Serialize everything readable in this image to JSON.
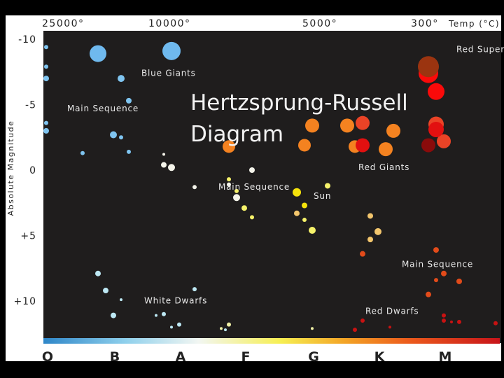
{
  "chart_data": {
    "type": "scatter",
    "title": "Hertzsprung-Russell Diagram",
    "xlabel": "Temp (°C)",
    "ylabel": "Absolute Magnitude",
    "x_ticks": [
      "25000°",
      "10000°",
      "5000°",
      "300°"
    ],
    "y_ticks": [
      "-10",
      "-5",
      "0",
      "+5",
      "+10"
    ],
    "spectral_classes": [
      "O",
      "B",
      "A",
      "F",
      "G",
      "K",
      "M"
    ],
    "region_labels": [
      {
        "text": "Red Supergiants",
        "class": "M",
        "magnitude": -9
      },
      {
        "text": "Blue Giants",
        "class": "B",
        "magnitude": -7.2
      },
      {
        "text": "Main Sequence",
        "class": "O",
        "magnitude": -4.5
      },
      {
        "text": "Red Giants",
        "class": "K",
        "magnitude": 0
      },
      {
        "text": "Main Sequence",
        "class": "A",
        "magnitude": 1.5
      },
      {
        "text": "Sun",
        "class": "G",
        "magnitude": 2.2
      },
      {
        "text": "Main Sequence",
        "class": "M",
        "magnitude": 7.4
      },
      {
        "text": "White Dwarfs",
        "class": "A",
        "magnitude": 10.2
      },
      {
        "text": "Red Dwarfs",
        "class": "K",
        "magnitude": 11
      }
    ],
    "groups": [
      {
        "name": "Blue Giants",
        "color": "#6fb9ee",
        "points": [
          {
            "class": "B",
            "magnitude": -8.9,
            "size": 12
          },
          {
            "class": "A",
            "magnitude": -9.1,
            "size": 13
          }
        ]
      },
      {
        "name": "Main Sequence",
        "color": "#7fc4f0",
        "points": [
          {
            "class": "O",
            "magnitude": -9.4,
            "size": 3
          },
          {
            "class": "O",
            "magnitude": -7.9,
            "size": 3
          },
          {
            "class": "O",
            "magnitude": -7.0,
            "size": 4
          },
          {
            "class": "B",
            "magnitude": -7.0,
            "size": 5
          },
          {
            "class": "B",
            "magnitude": -5.3,
            "size": 4
          },
          {
            "class": "O",
            "magnitude": -3.6,
            "size": 3
          },
          {
            "class": "O",
            "magnitude": -3.0,
            "size": 4
          },
          {
            "class": "B",
            "magnitude": -2.7,
            "size": 5
          },
          {
            "class": "B",
            "magnitude": -2.5,
            "size": 3
          },
          {
            "class": "B",
            "magnitude": -1.4,
            "size": 3
          },
          {
            "class": "B",
            "magnitude": -1.3,
            "size": 3
          }
        ]
      },
      {
        "name": "Main Sequence",
        "color": "#f4f4ea",
        "points": [
          {
            "class": "A",
            "magnitude": -1.2,
            "size": 2
          },
          {
            "class": "A",
            "magnitude": -0.2,
            "size": 5
          },
          {
            "class": "A",
            "magnitude": -0.4,
            "size": 4
          },
          {
            "class": "F",
            "magnitude": 0.0,
            "size": 4
          },
          {
            "class": "A",
            "magnitude": 1.3,
            "size": 3
          },
          {
            "class": "F",
            "magnitude": 1.1,
            "size": 3
          },
          {
            "class": "F",
            "magnitude": 2.1,
            "size": 5
          }
        ]
      },
      {
        "name": "Main Sequence",
        "color": "#f6f26a",
        "points": [
          {
            "class": "F",
            "magnitude": 0.7,
            "size": 3
          },
          {
            "class": "F",
            "magnitude": 1.6,
            "size": 3
          },
          {
            "class": "F",
            "magnitude": 2.9,
            "size": 4
          },
          {
            "class": "F",
            "magnitude": 3.6,
            "size": 3
          },
          {
            "class": "G",
            "magnitude": 1.2,
            "size": 4
          },
          {
            "class": "G",
            "magnitude": 1.8,
            "size": 4
          },
          {
            "class": "G",
            "magnitude": 3.8,
            "size": 3
          },
          {
            "class": "G",
            "magnitude": 4.6,
            "size": 5
          }
        ]
      },
      {
        "name": "Sun",
        "color": "#f5e20b",
        "points": [
          {
            "class": "G",
            "magnitude": 1.7,
            "size": 6
          },
          {
            "class": "G",
            "magnitude": 2.7,
            "size": 4
          }
        ]
      },
      {
        "name": "Main Sequence",
        "color": "#f3c66d",
        "points": [
          {
            "class": "G",
            "magnitude": 3.3,
            "size": 4
          },
          {
            "class": "K",
            "magnitude": 3.5,
            "size": 4
          },
          {
            "class": "K",
            "magnitude": 4.7,
            "size": 5
          },
          {
            "class": "K",
            "magnitude": 5.3,
            "size": 4
          }
        ]
      },
      {
        "name": "Red Giants",
        "color": "#f48220",
        "points": [
          {
            "class": "F",
            "magnitude": -1.8,
            "size": 9
          },
          {
            "class": "G",
            "magnitude": -1.9,
            "size": 9
          },
          {
            "class": "G",
            "magnitude": -3.4,
            "size": 10
          },
          {
            "class": "K",
            "magnitude": -1.6,
            "size": 10
          },
          {
            "class": "K",
            "magnitude": -3.0,
            "size": 10
          },
          {
            "class": "K",
            "magnitude": -3.4,
            "size": 10
          },
          {
            "class": "K",
            "magnitude": -1.8,
            "size": 9
          }
        ]
      },
      {
        "name": "Red Giants",
        "color": "#ea4326",
        "points": [
          {
            "class": "K",
            "magnitude": -3.6,
            "size": 10
          },
          {
            "class": "M",
            "magnitude": -3.5,
            "size": 11
          },
          {
            "class": "M",
            "magnitude": -2.2,
            "size": 10
          }
        ]
      },
      {
        "name": "Red Giants",
        "color": "#e21010",
        "points": [
          {
            "class": "K",
            "magnitude": -1.9,
            "size": 10
          },
          {
            "class": "M",
            "magnitude": -3.1,
            "size": 11
          }
        ]
      },
      {
        "name": "Red Giants",
        "color": "#8a0b0b",
        "points": [
          {
            "class": "M",
            "magnitude": -1.9,
            "size": 10
          }
        ]
      },
      {
        "name": "Red Supergiants",
        "color": "#fa0a0a",
        "points": [
          {
            "class": "M",
            "magnitude": -7.4,
            "size": 14
          },
          {
            "class": "M",
            "magnitude": -6.0,
            "size": 12
          }
        ]
      },
      {
        "name": "Red Supergiants",
        "color": "#9b3410",
        "points": [
          {
            "class": "M",
            "magnitude": -7.9,
            "size": 15
          }
        ]
      },
      {
        "name": "Main Sequence",
        "color": "#e24b1a",
        "points": [
          {
            "class": "K",
            "magnitude": 6.4,
            "size": 4
          },
          {
            "class": "M",
            "magnitude": 6.1,
            "size": 4
          },
          {
            "class": "M",
            "magnitude": 7.9,
            "size": 4
          },
          {
            "class": "M",
            "magnitude": 8.4,
            "size": 3
          },
          {
            "class": "M",
            "magnitude": 8.5,
            "size": 4
          },
          {
            "class": "M",
            "magnitude": 9.5,
            "size": 4
          }
        ]
      },
      {
        "name": "Red Dwarfs",
        "color": "#c81212",
        "points": [
          {
            "class": "K",
            "magnitude": 11.5,
            "size": 3
          },
          {
            "class": "K",
            "magnitude": 12.2,
            "size": 3
          },
          {
            "class": "M",
            "magnitude": 11.1,
            "size": 3
          },
          {
            "class": "M",
            "magnitude": 11.6,
            "size": 2
          },
          {
            "class": "M",
            "magnitude": 11.5,
            "size": 3
          },
          {
            "class": "M",
            "magnitude": 11.6,
            "size": 3
          },
          {
            "class": "M",
            "magnitude": 12.0,
            "size": 2
          },
          {
            "class": "M",
            "magnitude": 11.7,
            "size": 3
          }
        ]
      },
      {
        "name": "White Dwarfs",
        "color": "#bde8f4",
        "points": [
          {
            "class": "B",
            "magnitude": 7.9,
            "size": 4
          },
          {
            "class": "B",
            "magnitude": 9.2,
            "size": 4
          },
          {
            "class": "B",
            "magnitude": 11.1,
            "size": 4
          },
          {
            "class": "B",
            "magnitude": 9.9,
            "size": 2
          },
          {
            "class": "A",
            "magnitude": 9.1,
            "size": 3
          },
          {
            "class": "A",
            "magnitude": 11.0,
            "size": 3
          },
          {
            "class": "A",
            "magnitude": 11.1,
            "size": 2
          },
          {
            "class": "A",
            "magnitude": 11.8,
            "size": 3
          },
          {
            "class": "A",
            "magnitude": 12.0,
            "size": 2
          },
          {
            "class": "A",
            "magnitude": 12.2,
            "size": 2
          }
        ]
      },
      {
        "name": "White Dwarfs",
        "color": "#f0f0a6",
        "points": [
          {
            "class": "F",
            "magnitude": 11.8,
            "size": 3
          },
          {
            "class": "F",
            "magnitude": 12.1,
            "size": 2
          },
          {
            "class": "G",
            "magnitude": 12.1,
            "size": 2
          }
        ]
      }
    ]
  }
}
